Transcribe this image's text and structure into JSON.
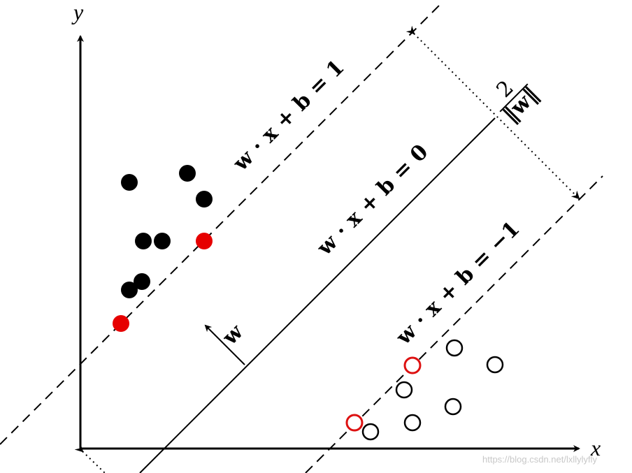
{
  "axes": {
    "x_label": "x",
    "y_label": "y"
  },
  "hyperplanes": [
    {
      "label": "w · x + b = 1"
    },
    {
      "label": "w · x + b = 0"
    },
    {
      "label": "w · x + b = −1"
    }
  ],
  "normal_label": "w",
  "margin": {
    "numerator": "2",
    "denominator": "‖w‖"
  },
  "watermark": "https://blog.csdn.net/lxllylyfly"
}
